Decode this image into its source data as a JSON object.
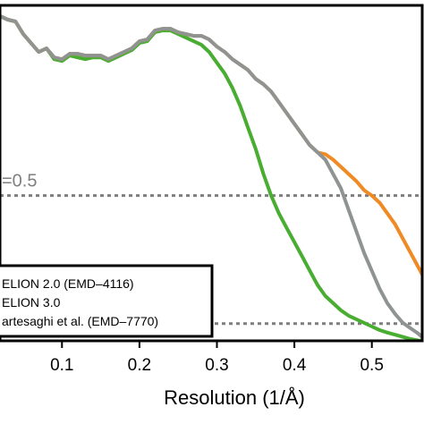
{
  "colors": {
    "background": "#ffffff",
    "axis": "#000000",
    "reference_lines": "#7f7f7f",
    "series": [
      "#f08a24",
      "#8f9492",
      "#49ad32"
    ]
  },
  "chart_data": {
    "type": "line",
    "xlabel": "Resolution (1/Å)",
    "ylabel": "",
    "title": "",
    "xlim": [
      0.02,
      0.565
    ],
    "ylim": [
      0.095,
      1.03
    ],
    "x_ticks": [
      0.1,
      0.2,
      0.3,
      0.4,
      0.5
    ],
    "x_tick_labels": [
      "0.1",
      "0.2",
      "0.3",
      "0.4",
      "0.5"
    ],
    "grid": false,
    "reference_lines": [
      {
        "y": 0.5,
        "label": "=0.5"
      },
      {
        "y": 0.143,
        "label": ""
      }
    ],
    "legend": {
      "placement": "bottom-left",
      "entries": [
        "ELION 2.0 (EMD–4116)",
        "ELION 3.0",
        "artesaghi et al. (EMD–7770)"
      ]
    },
    "series": [
      {
        "name": "ELION 2.0 (EMD–4116)",
        "x": [
          0.02,
          0.03,
          0.04,
          0.05,
          0.06,
          0.07,
          0.08,
          0.09,
          0.1,
          0.11,
          0.12,
          0.13,
          0.14,
          0.15,
          0.16,
          0.17,
          0.18,
          0.19,
          0.2,
          0.21,
          0.22,
          0.23,
          0.24,
          0.25,
          0.26,
          0.27,
          0.28,
          0.29,
          0.3,
          0.31,
          0.32,
          0.33,
          0.34,
          0.35,
          0.36,
          0.37,
          0.38,
          0.39,
          0.4,
          0.41,
          0.42,
          0.43,
          0.44,
          0.45,
          0.46,
          0.47,
          0.48,
          0.49,
          0.5,
          0.51,
          0.52,
          0.53,
          0.54,
          0.55,
          0.56,
          0.565
        ],
        "y": [
          1.0,
          0.99,
          0.985,
          0.95,
          0.925,
          0.9,
          0.91,
          0.885,
          0.88,
          0.895,
          0.895,
          0.89,
          0.89,
          0.89,
          0.88,
          0.89,
          0.9,
          0.91,
          0.93,
          0.935,
          0.96,
          0.965,
          0.965,
          0.955,
          0.95,
          0.945,
          0.945,
          0.935,
          0.915,
          0.9,
          0.88,
          0.865,
          0.85,
          0.825,
          0.81,
          0.79,
          0.76,
          0.73,
          0.7,
          0.67,
          0.64,
          0.62,
          0.615,
          0.6,
          0.58,
          0.56,
          0.54,
          0.515,
          0.5,
          0.48,
          0.45,
          0.42,
          0.38,
          0.34,
          0.3,
          0.28
        ]
      },
      {
        "name": "ELION 3.0",
        "x": [
          0.02,
          0.03,
          0.04,
          0.05,
          0.06,
          0.07,
          0.08,
          0.09,
          0.1,
          0.11,
          0.12,
          0.13,
          0.14,
          0.15,
          0.16,
          0.17,
          0.18,
          0.19,
          0.2,
          0.21,
          0.22,
          0.23,
          0.24,
          0.25,
          0.26,
          0.27,
          0.28,
          0.29,
          0.3,
          0.31,
          0.32,
          0.33,
          0.34,
          0.35,
          0.36,
          0.37,
          0.38,
          0.39,
          0.4,
          0.41,
          0.42,
          0.43,
          0.44,
          0.45,
          0.46,
          0.47,
          0.48,
          0.49,
          0.5,
          0.51,
          0.52,
          0.53,
          0.54,
          0.55,
          0.56,
          0.565
        ],
        "y": [
          1.0,
          0.99,
          0.985,
          0.95,
          0.925,
          0.9,
          0.91,
          0.885,
          0.88,
          0.895,
          0.895,
          0.89,
          0.89,
          0.89,
          0.88,
          0.89,
          0.9,
          0.91,
          0.93,
          0.935,
          0.96,
          0.965,
          0.965,
          0.955,
          0.95,
          0.945,
          0.945,
          0.935,
          0.915,
          0.9,
          0.88,
          0.865,
          0.85,
          0.825,
          0.81,
          0.79,
          0.76,
          0.73,
          0.7,
          0.67,
          0.64,
          0.62,
          0.6,
          0.56,
          0.52,
          0.46,
          0.4,
          0.34,
          0.29,
          0.24,
          0.2,
          0.17,
          0.145,
          0.13,
          0.115,
          0.105
        ]
      },
      {
        "name": "artesaghi et al. (EMD–7770)",
        "x": [
          0.02,
          0.03,
          0.04,
          0.05,
          0.06,
          0.07,
          0.08,
          0.09,
          0.1,
          0.11,
          0.12,
          0.13,
          0.14,
          0.15,
          0.16,
          0.17,
          0.18,
          0.19,
          0.2,
          0.21,
          0.22,
          0.23,
          0.24,
          0.25,
          0.26,
          0.27,
          0.28,
          0.29,
          0.3,
          0.31,
          0.32,
          0.33,
          0.34,
          0.35,
          0.36,
          0.37,
          0.38,
          0.39,
          0.4,
          0.41,
          0.42,
          0.43,
          0.44,
          0.45,
          0.46,
          0.47,
          0.48,
          0.49,
          0.5,
          0.51,
          0.52,
          0.53,
          0.54,
          0.55,
          0.56,
          0.565
        ],
        "y": [
          1.0,
          0.99,
          0.985,
          0.95,
          0.925,
          0.9,
          0.91,
          0.88,
          0.875,
          0.89,
          0.885,
          0.88,
          0.885,
          0.885,
          0.875,
          0.885,
          0.895,
          0.905,
          0.925,
          0.93,
          0.955,
          0.96,
          0.96,
          0.95,
          0.94,
          0.93,
          0.92,
          0.9,
          0.87,
          0.84,
          0.8,
          0.75,
          0.69,
          0.63,
          0.56,
          0.5,
          0.45,
          0.41,
          0.37,
          0.33,
          0.29,
          0.25,
          0.22,
          0.2,
          0.18,
          0.165,
          0.155,
          0.145,
          0.135,
          0.125,
          0.118,
          0.112,
          0.106,
          0.1,
          0.096,
          0.095
        ]
      }
    ]
  }
}
